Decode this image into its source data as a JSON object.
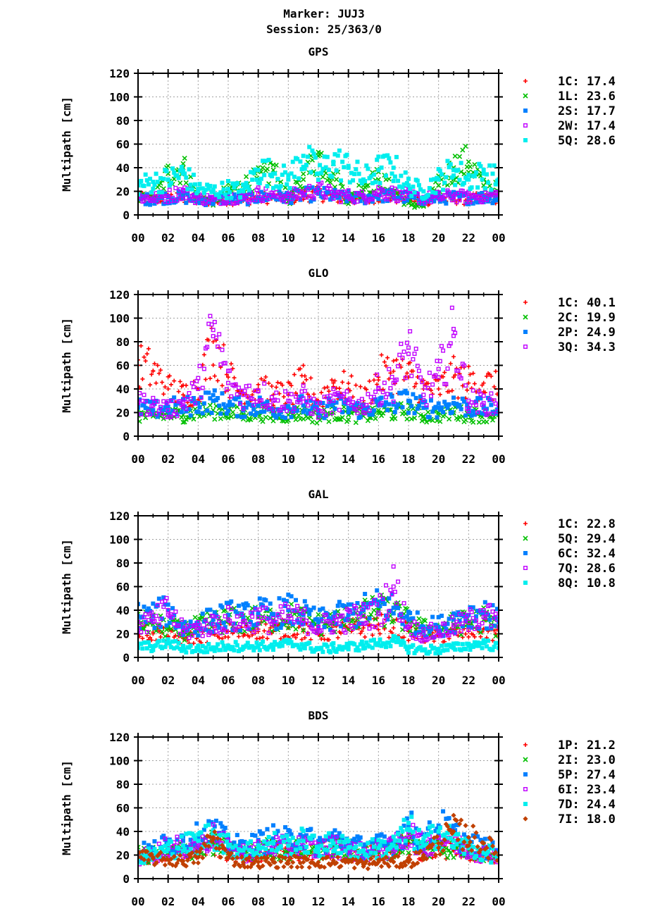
{
  "header": {
    "marker": "Marker: JUJ3",
    "session": "Session: 25/363/0"
  },
  "colors": {
    "red": "#ff0000",
    "green": "#00c000",
    "blue": "#0080ff",
    "purple": "#c000ff",
    "cyan": "#00eeee",
    "brown": "#c04000"
  },
  "chart_data": [
    {
      "type": "scatter",
      "title": "GPS",
      "ylabel": "Multipath [cm]",
      "xlabel": "",
      "ylim": [
        0,
        120
      ],
      "xlim": [
        0,
        24
      ],
      "grid": true,
      "legend": "right",
      "xticks": [
        "00",
        "02",
        "04",
        "06",
        "08",
        "10",
        "12",
        "14",
        "16",
        "18",
        "20",
        "22",
        "00"
      ],
      "yticks": [
        "0",
        "20",
        "40",
        "60",
        "80",
        "100",
        "120"
      ],
      "x_hours": [
        0,
        1,
        2,
        3,
        4,
        5,
        6,
        7,
        8,
        9,
        10,
        11,
        12,
        13,
        14,
        15,
        16,
        17,
        18,
        19,
        20,
        21,
        22,
        23,
        24
      ],
      "series": [
        {
          "name": "1C: 17.4",
          "marker": "plus",
          "color": "#ff0000",
          "values": [
            14,
            13,
            15,
            14,
            12,
            12,
            13,
            12,
            14,
            15,
            14,
            16,
            18,
            15,
            14,
            13,
            16,
            15,
            14,
            12,
            13,
            14,
            13,
            14,
            15
          ]
        },
        {
          "name": "1L: 23.6",
          "marker": "cross",
          "color": "#00c000",
          "values": [
            14,
            12,
            35,
            40,
            14,
            12,
            20,
            25,
            30,
            38,
            12,
            30,
            50,
            35,
            12,
            25,
            30,
            20,
            10,
            8,
            25,
            40,
            45,
            25,
            20
          ]
        },
        {
          "name": "2S: 17.7",
          "marker": "square",
          "color": "#0080ff",
          "values": [
            14,
            13,
            15,
            15,
            13,
            12,
            14,
            13,
            15,
            16,
            15,
            17,
            18,
            16,
            15,
            14,
            17,
            16,
            15,
            13,
            14,
            15,
            14,
            15,
            15
          ]
        },
        {
          "name": "2W: 17.4",
          "marker": "open-square",
          "color": "#c000ff",
          "values": [
            15,
            14,
            16,
            20,
            14,
            13,
            15,
            14,
            18,
            17,
            16,
            18,
            22,
            17,
            16,
            15,
            20,
            18,
            16,
            14,
            15,
            16,
            15,
            16,
            17
          ]
        },
        {
          "name": "5Q: 28.6",
          "marker": "square",
          "color": "#00eeee",
          "values": [
            25,
            28,
            30,
            35,
            22,
            20,
            22,
            20,
            38,
            35,
            30,
            50,
            35,
            45,
            40,
            30,
            38,
            40,
            25,
            20,
            30,
            38,
            30,
            35,
            30
          ]
        }
      ]
    },
    {
      "type": "scatter",
      "title": "GLO",
      "ylabel": "Multipath [cm]",
      "xlabel": "",
      "ylim": [
        0,
        120
      ],
      "xlim": [
        0,
        24
      ],
      "grid": true,
      "legend": "right",
      "xticks": [
        "00",
        "02",
        "04",
        "06",
        "08",
        "10",
        "12",
        "14",
        "16",
        "18",
        "20",
        "22",
        "00"
      ],
      "yticks": [
        "0",
        "20",
        "40",
        "60",
        "80",
        "100",
        "120"
      ],
      "x_hours": [
        0,
        1,
        2,
        3,
        4,
        5,
        6,
        7,
        8,
        9,
        10,
        11,
        12,
        13,
        14,
        15,
        16,
        17,
        18,
        19,
        20,
        21,
        22,
        23,
        24
      ],
      "series": [
        {
          "name": "1C: 40.1",
          "marker": "plus",
          "color": "#ff0000",
          "values": [
            60,
            55,
            40,
            35,
            40,
            80,
            50,
            35,
            40,
            35,
            35,
            45,
            30,
            45,
            40,
            30,
            50,
            55,
            50,
            40,
            40,
            50,
            45,
            45,
            40
          ]
        },
        {
          "name": "2C: 19.9",
          "marker": "cross",
          "color": "#00c000",
          "values": [
            18,
            17,
            18,
            18,
            20,
            22,
            20,
            18,
            20,
            17,
            18,
            20,
            16,
            20,
            18,
            17,
            20,
            20,
            22,
            17,
            18,
            20,
            18,
            18,
            18
          ]
        },
        {
          "name": "2P: 24.9",
          "marker": "square",
          "color": "#0080ff",
          "values": [
            24,
            22,
            25,
            24,
            28,
            30,
            26,
            24,
            26,
            22,
            24,
            26,
            20,
            28,
            24,
            22,
            26,
            28,
            30,
            24,
            24,
            28,
            24,
            24,
            24
          ]
        },
        {
          "name": "3Q: 34.3",
          "marker": "open-square",
          "color": "#c000ff",
          "values": [
            28,
            26,
            22,
            28,
            40,
            90,
            45,
            35,
            38,
            30,
            30,
            32,
            22,
            30,
            28,
            26,
            40,
            45,
            75,
            35,
            50,
            85,
            30,
            28,
            26
          ]
        }
      ]
    },
    {
      "type": "scatter",
      "title": "GAL",
      "ylabel": "Multipath [cm]",
      "xlabel": "",
      "ylim": [
        0,
        120
      ],
      "xlim": [
        0,
        24
      ],
      "grid": true,
      "legend": "right",
      "xticks": [
        "00",
        "02",
        "04",
        "06",
        "08",
        "10",
        "12",
        "14",
        "16",
        "18",
        "20",
        "22",
        "00"
      ],
      "yticks": [
        "0",
        "20",
        "40",
        "60",
        "80",
        "100",
        "120"
      ],
      "x_hours": [
        0,
        1,
        2,
        3,
        4,
        5,
        6,
        7,
        8,
        9,
        10,
        11,
        12,
        13,
        14,
        15,
        16,
        17,
        18,
        19,
        20,
        21,
        22,
        23,
        24
      ],
      "series": [
        {
          "name": "1C: 22.8",
          "marker": "plus",
          "color": "#ff0000",
          "values": [
            22,
            20,
            18,
            16,
            18,
            20,
            22,
            20,
            24,
            22,
            25,
            22,
            20,
            22,
            24,
            25,
            28,
            25,
            22,
            18,
            18,
            20,
            22,
            24,
            18
          ]
        },
        {
          "name": "5Q: 29.4",
          "marker": "cross",
          "color": "#00c000",
          "values": [
            30,
            28,
            25,
            22,
            26,
            30,
            32,
            30,
            34,
            32,
            35,
            32,
            28,
            30,
            34,
            36,
            40,
            38,
            30,
            24,
            24,
            28,
            30,
            32,
            26
          ]
        },
        {
          "name": "6C: 32.4",
          "marker": "square",
          "color": "#0080ff",
          "values": [
            35,
            35,
            40,
            25,
            28,
            32,
            36,
            34,
            38,
            36,
            40,
            36,
            30,
            34,
            36,
            40,
            44,
            42,
            32,
            26,
            26,
            32,
            36,
            38,
            30
          ]
        },
        {
          "name": "7Q: 28.6",
          "marker": "open-square",
          "color": "#c000ff",
          "values": [
            30,
            30,
            40,
            22,
            25,
            28,
            32,
            30,
            34,
            30,
            35,
            32,
            26,
            30,
            32,
            35,
            38,
            60,
            26,
            20,
            22,
            26,
            30,
            40,
            26
          ]
        },
        {
          "name": "8Q: 10.8",
          "marker": "square",
          "color": "#00eeee",
          "values": [
            10,
            9,
            12,
            8,
            7,
            8,
            10,
            9,
            10,
            9,
            12,
            10,
            7,
            8,
            9,
            10,
            12,
            14,
            8,
            6,
            7,
            8,
            10,
            12,
            8
          ]
        }
      ]
    },
    {
      "type": "scatter",
      "title": "BDS",
      "ylabel": "Multipath [cm]",
      "xlabel": "",
      "ylim": [
        0,
        120
      ],
      "xlim": [
        0,
        24
      ],
      "grid": true,
      "legend": "right",
      "xticks": [
        "00",
        "02",
        "04",
        "06",
        "08",
        "10",
        "12",
        "14",
        "16",
        "18",
        "20",
        "22",
        "00"
      ],
      "yticks": [
        "0",
        "20",
        "40",
        "60",
        "80",
        "100",
        "120"
      ],
      "x_hours": [
        0,
        1,
        2,
        3,
        4,
        5,
        6,
        7,
        8,
        9,
        10,
        11,
        12,
        13,
        14,
        15,
        16,
        17,
        18,
        19,
        20,
        21,
        22,
        23,
        24
      ],
      "series": [
        {
          "name": "1P: 21.2",
          "marker": "plus",
          "color": "#ff0000",
          "values": [
            18,
            18,
            20,
            22,
            24,
            28,
            22,
            20,
            22,
            24,
            22,
            24,
            22,
            26,
            22,
            20,
            22,
            24,
            30,
            22,
            26,
            24,
            22,
            20,
            20
          ]
        },
        {
          "name": "2I: 23.0",
          "marker": "cross",
          "color": "#00c000",
          "values": [
            20,
            20,
            22,
            24,
            26,
            30,
            24,
            22,
            24,
            26,
            24,
            26,
            24,
            28,
            24,
            22,
            24,
            26,
            32,
            24,
            28,
            26,
            24,
            22,
            22
          ]
        },
        {
          "name": "5P: 27.4",
          "marker": "square",
          "color": "#0080ff",
          "values": [
            22,
            24,
            30,
            32,
            35,
            40,
            30,
            26,
            30,
            34,
            32,
            36,
            28,
            34,
            30,
            26,
            28,
            30,
            45,
            30,
            45,
            38,
            30,
            26,
            24
          ]
        },
        {
          "name": "6I: 23.4",
          "marker": "open-square",
          "color": "#c000ff",
          "values": [
            18,
            20,
            28,
            26,
            30,
            35,
            26,
            22,
            24,
            28,
            26,
            28,
            24,
            28,
            24,
            22,
            24,
            26,
            40,
            26,
            35,
            30,
            24,
            22,
            20
          ]
        },
        {
          "name": "7D: 24.4",
          "marker": "square",
          "color": "#00eeee",
          "values": [
            18,
            20,
            25,
            28,
            32,
            38,
            28,
            24,
            26,
            30,
            28,
            32,
            26,
            30,
            26,
            24,
            26,
            28,
            42,
            28,
            40,
            32,
            26,
            22,
            20
          ]
        },
        {
          "name": "7I: 18.0",
          "marker": "diamond",
          "color": "#c04000",
          "values": [
            18,
            17,
            16,
            15,
            18,
            35,
            18,
            14,
            14,
            14,
            15,
            14,
            14,
            14,
            14,
            12,
            14,
            14,
            14,
            20,
            30,
            40,
            35,
            30,
            20
          ]
        }
      ]
    }
  ]
}
